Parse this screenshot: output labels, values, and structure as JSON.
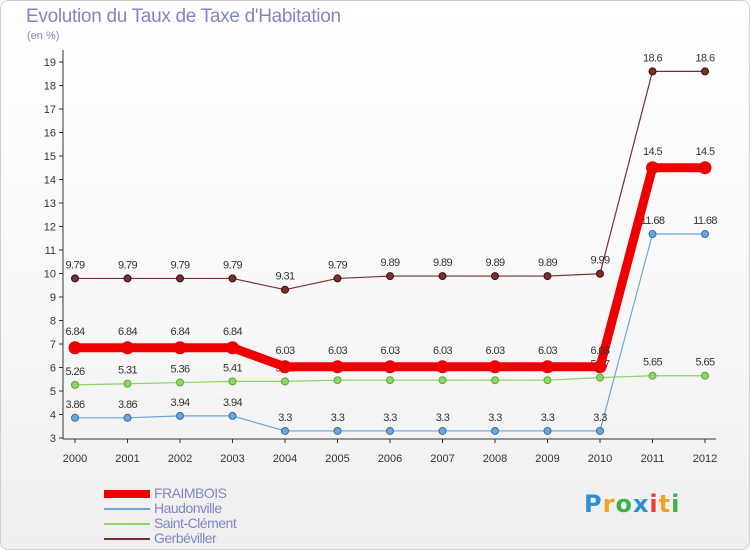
{
  "header": {
    "title": "Evolution du Taux de Taxe d'Habitation",
    "unit": "(en %)"
  },
  "logo": {
    "text": "Proxiti",
    "letters": [
      "P",
      "r",
      "o",
      "x",
      "i",
      "t",
      "i"
    ],
    "colors": [
      "#2f8fd1",
      "#f0a32a",
      "#3ab34a",
      "#2f8fd1",
      "#e8402c",
      "#f0a32a",
      "#3ab34a"
    ]
  },
  "chart_data": {
    "type": "line",
    "title": "Evolution du Taux de Taxe d'Habitation",
    "ylabel": "(en %)",
    "xlabel": "",
    "x": [
      "2000",
      "2001",
      "2002",
      "2003",
      "2004",
      "2005",
      "2006",
      "2007",
      "2008",
      "2009",
      "2010",
      "2011",
      "2012"
    ],
    "ylim": [
      3,
      19
    ],
    "yticks": [
      3,
      4,
      5,
      6,
      7,
      8,
      9,
      10,
      11,
      12,
      13,
      14,
      15,
      16,
      17,
      18,
      19
    ],
    "grid": false,
    "legend_position": "bottom-left",
    "series": [
      {
        "name": "Gerbéviller",
        "color": "#7a2e2e",
        "values": [
          9.79,
          9.79,
          9.79,
          9.79,
          9.31,
          9.79,
          9.89,
          9.89,
          9.89,
          9.89,
          9.99,
          18.6,
          18.6
        ],
        "labels": [
          "9.79",
          "9.79",
          "9.79",
          "9.79",
          "9.31",
          "9.79",
          "9.89",
          "9.89",
          "9.89",
          "9.89",
          "9.99",
          "18.6",
          "18.6"
        ]
      },
      {
        "name": "Saint-Clément",
        "color": "#8fd464",
        "values": [
          5.26,
          5.31,
          5.36,
          5.41,
          5.41,
          5.46,
          5.46,
          5.46,
          5.46,
          5.46,
          5.57,
          5.65,
          5.65
        ],
        "labels": [
          "5.26",
          "5.31",
          "5.36",
          "5.41",
          "5.41",
          "5.46",
          "5.46",
          "5.46",
          "5.46",
          "5.46",
          "5.57",
          "5.65",
          "5.65"
        ]
      },
      {
        "name": "Haudonville",
        "color": "#6ea6d9",
        "values": [
          3.86,
          3.86,
          3.94,
          3.94,
          3.3,
          3.3,
          3.3,
          3.3,
          3.3,
          3.3,
          3.3,
          11.68,
          11.68
        ],
        "labels": [
          "3.86",
          "3.86",
          "3.94",
          "3.94",
          "3.3",
          "3.3",
          "3.3",
          "3.3",
          "3.3",
          "3.3",
          "3.3",
          "11.68",
          "11.68"
        ]
      },
      {
        "name": "FRAIMBOIS",
        "color": "#ee0000",
        "values": [
          6.84,
          6.84,
          6.84,
          6.84,
          6.03,
          6.03,
          6.03,
          6.03,
          6.03,
          6.03,
          6.03,
          14.5,
          14.5
        ],
        "labels": [
          "6.84",
          "6.84",
          "6.84",
          "6.84",
          "6.03",
          "6.03",
          "6.03",
          "6.03",
          "6.03",
          "6.03",
          "6.03",
          "14.5",
          "14.5"
        ]
      }
    ],
    "legend_order": [
      "FRAIMBOIS",
      "Haudonville",
      "Saint-Clément",
      "Gerbéviller"
    ]
  }
}
